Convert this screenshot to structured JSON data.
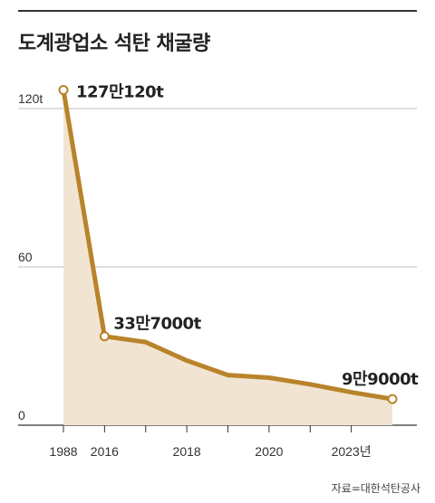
{
  "title": "도계광업소 석탄 채굴량",
  "source": "자료=대한석탄공사",
  "chart_data": {
    "type": "area",
    "title": "도계광업소 석탄 채굴량",
    "unit": "t",
    "ylim": [
      0,
      120
    ],
    "yticks": [
      {
        "value": 120,
        "label": "120t"
      },
      {
        "value": 60,
        "label": "60"
      },
      {
        "value": 0,
        "label": "0"
      }
    ],
    "xticks": [
      "1988",
      "2016",
      "",
      "2018",
      "",
      "2020",
      "",
      "2023년"
    ],
    "points": [
      {
        "x": "1988",
        "y": 127.012,
        "label": "127만120t"
      },
      {
        "x": "2016",
        "y": 33.7,
        "label": "33만7000t"
      },
      {
        "x": "2017",
        "y": 31.5,
        "label": ""
      },
      {
        "x": "2018",
        "y": 24.5,
        "label": ""
      },
      {
        "x": "2019",
        "y": 19,
        "label": ""
      },
      {
        "x": "2020",
        "y": 18,
        "label": ""
      },
      {
        "x": "2021",
        "y": 15.5,
        "label": ""
      },
      {
        "x": "2022",
        "y": 12.5,
        "label": ""
      },
      {
        "x": "2023",
        "y": 9.9,
        "label": "9만9000t"
      }
    ],
    "line_color": "#b8832a",
    "area_color": "#f1e4d2",
    "grid": true
  }
}
